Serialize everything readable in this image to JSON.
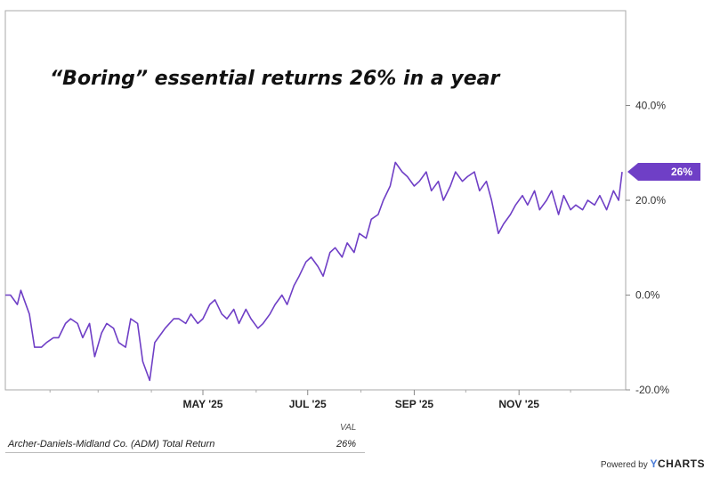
{
  "chart_data": {
    "type": "line",
    "title": "“Boring” essential returns 26% in a year",
    "x_ticks": [
      "MAY '25",
      "JUL '25",
      "SEP '25",
      "NOV '25"
    ],
    "y_ticks": [
      "40.0%",
      "20.0%",
      "0.0%",
      "-20.0%"
    ],
    "ylim": [
      -20,
      60
    ],
    "y_unit": "%",
    "grid": false,
    "series": [
      {
        "name": "Archer-Daniels-Midland Co. (ADM) Total Return",
        "color": "#6f3fc6",
        "last_value_label": "26%",
        "x": [
          "2025-01-06",
          "2025-01-09",
          "2025-01-13",
          "2025-01-15",
          "2025-01-17",
          "2025-01-20",
          "2025-01-23",
          "2025-01-27",
          "2025-01-30",
          "2025-02-03",
          "2025-02-06",
          "2025-02-10",
          "2025-02-13",
          "2025-02-17",
          "2025-02-20",
          "2025-02-24",
          "2025-02-27",
          "2025-03-03",
          "2025-03-06",
          "2025-03-10",
          "2025-03-13",
          "2025-03-17",
          "2025-03-20",
          "2025-03-24",
          "2025-03-27",
          "2025-03-31",
          "2025-04-03",
          "2025-04-07",
          "2025-04-09",
          "2025-04-14",
          "2025-04-17",
          "2025-04-21",
          "2025-04-24",
          "2025-04-28",
          "2025-05-01",
          "2025-05-05",
          "2025-05-08",
          "2025-05-12",
          "2025-05-15",
          "2025-05-19",
          "2025-05-22",
          "2025-05-26",
          "2025-05-29",
          "2025-06-02",
          "2025-06-05",
          "2025-06-09",
          "2025-06-12",
          "2025-06-16",
          "2025-06-19",
          "2025-06-23",
          "2025-06-26",
          "2025-06-30",
          "2025-07-03",
          "2025-07-07",
          "2025-07-10",
          "2025-07-14",
          "2025-07-17",
          "2025-07-21",
          "2025-07-24",
          "2025-07-28",
          "2025-07-31",
          "2025-08-04",
          "2025-08-07",
          "2025-08-11",
          "2025-08-14",
          "2025-08-18",
          "2025-08-21",
          "2025-08-25",
          "2025-08-28",
          "2025-09-01",
          "2025-09-04",
          "2025-09-08",
          "2025-09-11",
          "2025-09-15",
          "2025-09-18",
          "2025-09-22",
          "2025-09-25",
          "2025-09-29",
          "2025-10-02",
          "2025-10-06",
          "2025-10-09",
          "2025-10-13",
          "2025-10-16",
          "2025-10-20",
          "2025-10-23",
          "2025-10-27",
          "2025-10-30",
          "2025-11-03",
          "2025-11-06",
          "2025-11-10",
          "2025-11-13",
          "2025-11-17",
          "2025-11-20",
          "2025-11-24",
          "2025-11-27",
          "2025-12-01",
          "2025-12-04",
          "2025-12-08",
          "2025-12-11",
          "2025-12-15",
          "2025-12-18",
          "2025-12-22",
          "2025-12-26",
          "2025-12-29",
          "2025-12-31"
        ],
        "y": [
          0,
          0,
          -2,
          1,
          -1,
          -4,
          -11,
          -11,
          -10,
          -9,
          -9,
          -6,
          -5,
          -6,
          -9,
          -6,
          -13,
          -8,
          -6,
          -7,
          -10,
          -11,
          -5,
          -6,
          -14,
          -18,
          -10,
          -8,
          -7,
          -5,
          -5,
          -6,
          -4,
          -6,
          -5,
          -2,
          -1,
          -4,
          -5,
          -3,
          -6,
          -3,
          -5,
          -7,
          -6,
          -4,
          -2,
          0,
          -2,
          2,
          4,
          7,
          8,
          6,
          4,
          9,
          10,
          8,
          11,
          9,
          13,
          12,
          16,
          17,
          20,
          23,
          28,
          26,
          25,
          23,
          24,
          26,
          22,
          24,
          20,
          23,
          26,
          24,
          25,
          26,
          22,
          24,
          20,
          13,
          15,
          17,
          19,
          21,
          19,
          22,
          18,
          20,
          22,
          17,
          21,
          18,
          19,
          18,
          20,
          19,
          21,
          18,
          22,
          20,
          26
        ]
      }
    ]
  },
  "legend": {
    "column_header": "VAL",
    "series_name": "Archer-Daniels-Midland Co. (ADM) Total Return",
    "series_value": "26%"
  },
  "footer": {
    "powered_by": "Powered by",
    "brand_y": "Y",
    "brand_rest": "CHARTS"
  }
}
